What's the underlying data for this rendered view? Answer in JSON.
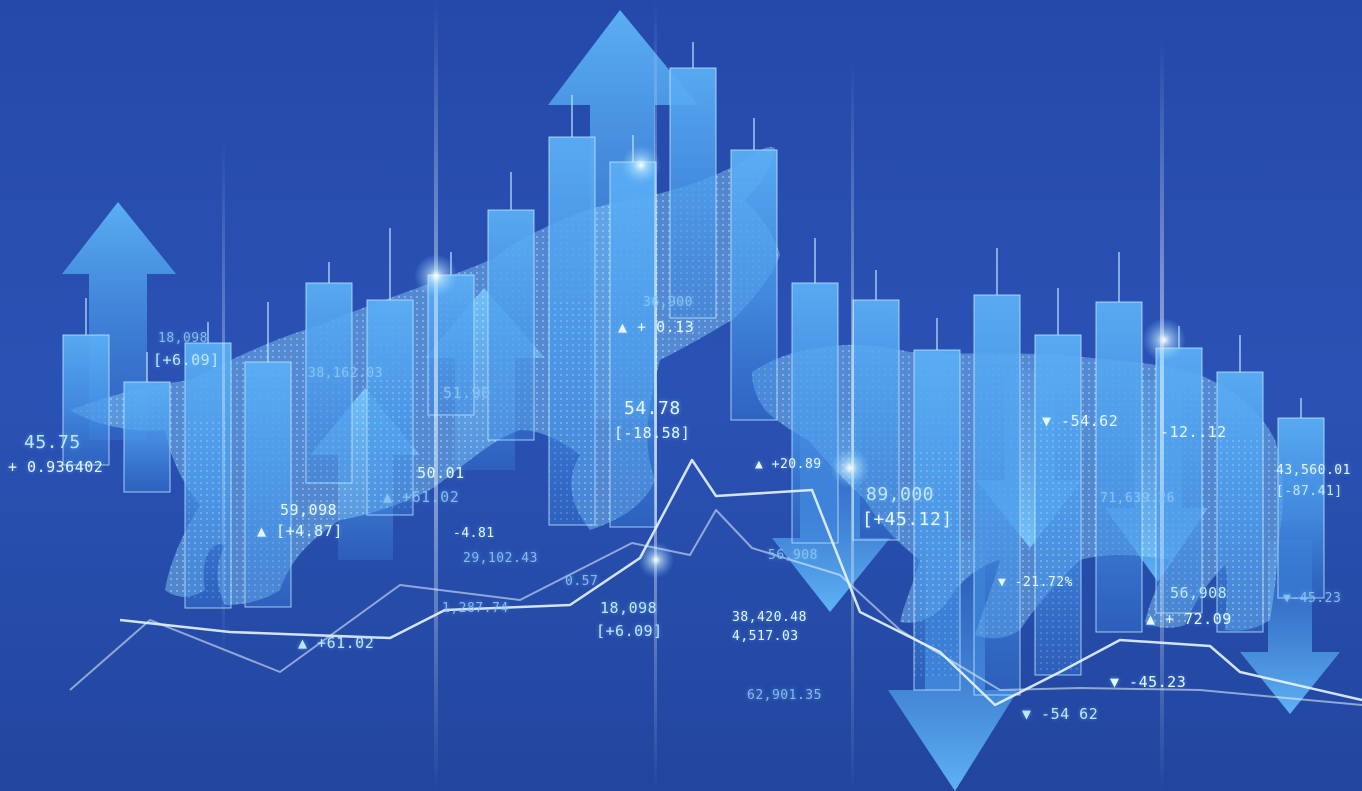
{
  "colors": {
    "background": "#2448a8",
    "candle_fill": "#4ea4f2",
    "candle_highlight": "#a8e6ff",
    "label_text": "#bfe6ff",
    "arrow_fill": "#5bb0f5"
  },
  "scene": {
    "subject": "stock-market-bull-vs-bear",
    "icons": [
      "bull-silhouette-icon",
      "bear-silhouette-icon",
      "arrow-up-icon",
      "arrow-down-icon"
    ]
  },
  "labels": {
    "l01": "45.75",
    "l02": "+ 0.936402",
    "l03": "18,098",
    "l04": "[+6.09]",
    "l05": "38,162.03",
    "l06": "59,098",
    "l07": "▲ [+4.87]",
    "l08": "▲ +61.02",
    "l09": "51.90",
    "l10": "50.01",
    "l11": "▲ +61.02",
    "l12": "-4.81",
    "l13": "29,102.43",
    "l14": "36,900",
    "l15": "▲ + 0.13",
    "l16": "54.78",
    "l17": "[-18.58]",
    "l18": "0.57",
    "l19": "1,287.74",
    "l20": "18,098",
    "l21": "[+6.09]",
    "l22": "▲ +20.89",
    "l23": "56,908",
    "l24": "38,420.48",
    "l25": "4,517.03",
    "l26": "62,901.35",
    "l27": "89,000",
    "l28": "[+45.12]",
    "l29": "▼ -54.62",
    "l30": "▼ -21.72%",
    "l31": "-12..12",
    "l32": "71,639.26",
    "l33": "56,908",
    "l34": "▲ + 72.09",
    "l35": "43,560.01",
    "l36": "[-87.41]",
    "l37": "▼-45.23",
    "l38": "▼ -45.23",
    "l39": "▼ -54 62"
  }
}
